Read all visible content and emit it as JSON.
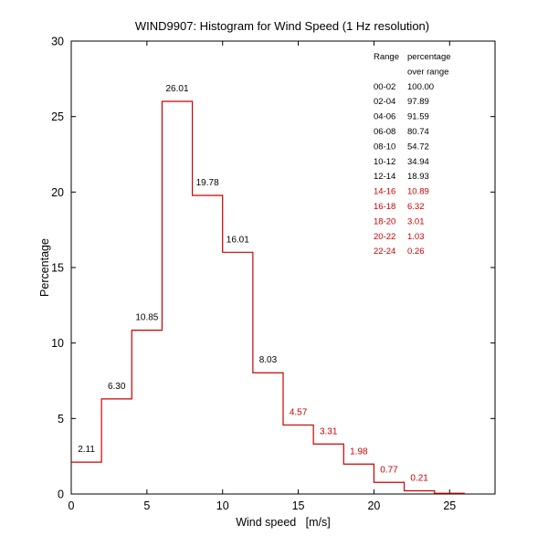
{
  "chart_data": {
    "type": "bar",
    "title": "WIND9907: Histogram for Wind Speed (1 Hz resolution)",
    "xlabel": "Wind speed   [m/s]",
    "ylabel": "Percentage",
    "xlim": [
      0,
      28
    ],
    "ylim": [
      0,
      30
    ],
    "xticks": [
      0,
      5,
      10,
      15,
      20,
      25
    ],
    "yticks": [
      0,
      5,
      10,
      15,
      20,
      25,
      30
    ],
    "bins": [
      {
        "start": 0,
        "end": 2,
        "value": 2.11,
        "label": "2.11"
      },
      {
        "start": 2,
        "end": 4,
        "value": 6.3,
        "label": "6.30"
      },
      {
        "start": 4,
        "end": 6,
        "value": 10.85,
        "label": "10.85"
      },
      {
        "start": 6,
        "end": 8,
        "value": 26.01,
        "label": "26.01"
      },
      {
        "start": 8,
        "end": 10,
        "value": 19.78,
        "label": "19.78"
      },
      {
        "start": 10,
        "end": 12,
        "value": 16.01,
        "label": "16.01"
      },
      {
        "start": 12,
        "end": 14,
        "value": 8.03,
        "label": "8.03"
      },
      {
        "start": 14,
        "end": 16,
        "value": 4.57,
        "label": "4.57"
      },
      {
        "start": 16,
        "end": 18,
        "value": 3.31,
        "label": "3.31"
      },
      {
        "start": 18,
        "end": 20,
        "value": 1.98,
        "label": "1.98"
      },
      {
        "start": 20,
        "end": 22,
        "value": 0.77,
        "label": "0.77"
      },
      {
        "start": 22,
        "end": 24,
        "value": 0.21,
        "label": "0.21"
      },
      {
        "start": 24,
        "end": 26,
        "value": 0.05,
        "label": ""
      }
    ],
    "highlight_from_x": 14,
    "colors": {
      "line": "#cc0000",
      "highlight_text": "#cc0000",
      "text": "#000000",
      "axis": "#000000"
    },
    "table": {
      "headers": [
        "Range",
        "percentage"
      ],
      "subheader": "over range",
      "rows": [
        {
          "range": "00-02",
          "pct": "100.00",
          "highlight": false
        },
        {
          "range": "02-04",
          "pct": "97.89",
          "highlight": false
        },
        {
          "range": "04-06",
          "pct": "91.59",
          "highlight": false
        },
        {
          "range": "06-08",
          "pct": "80.74",
          "highlight": false
        },
        {
          "range": "08-10",
          "pct": "54.72",
          "highlight": false
        },
        {
          "range": "10-12",
          "pct": "34.94",
          "highlight": false
        },
        {
          "range": "12-14",
          "pct": "18.93",
          "highlight": false
        },
        {
          "range": "14-16",
          "pct": "10.89",
          "highlight": true
        },
        {
          "range": "16-18",
          "pct": "6.32",
          "highlight": true
        },
        {
          "range": "18-20",
          "pct": "3.01",
          "highlight": true
        },
        {
          "range": "20-22",
          "pct": "1.03",
          "highlight": true
        },
        {
          "range": "22-24",
          "pct": "0.26",
          "highlight": true
        }
      ]
    }
  }
}
